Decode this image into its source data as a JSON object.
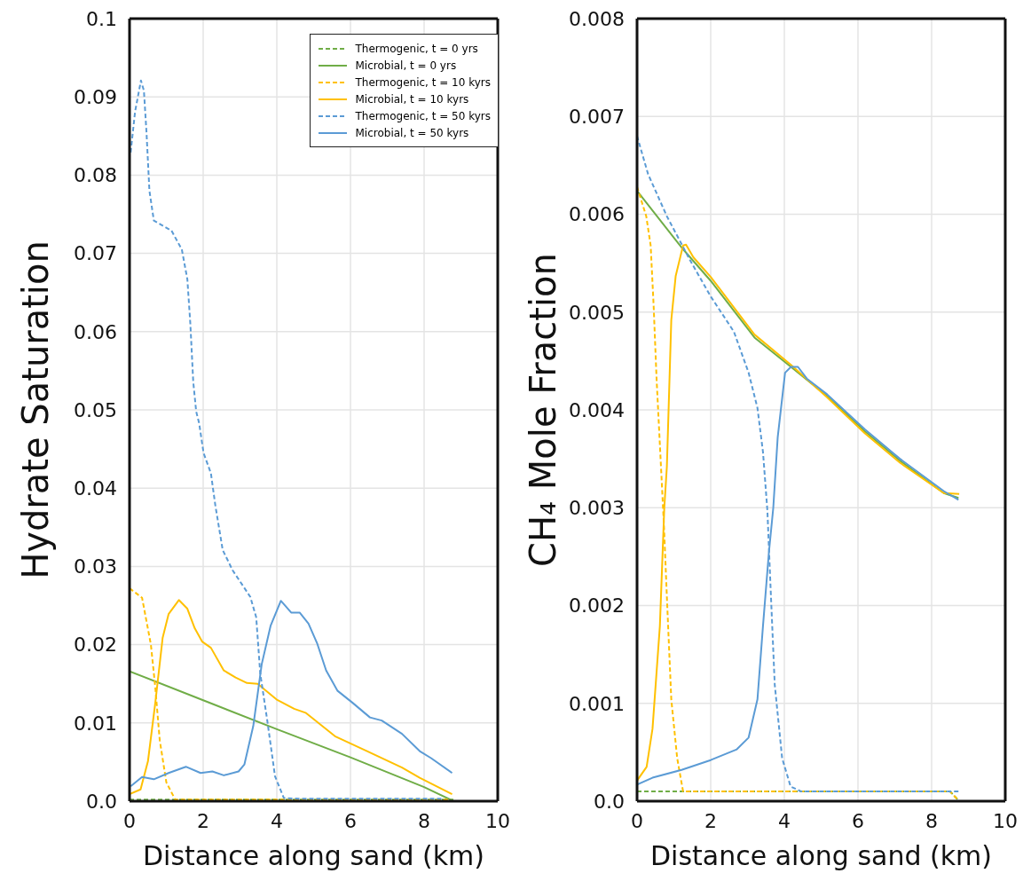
{
  "chart_data": [
    {
      "type": "line",
      "xlabel": "Distance along sand (km)",
      "ylabel": "Hydrate Saturation",
      "xlim": [
        0,
        10
      ],
      "xticks": [
        0,
        2,
        4,
        6,
        8,
        10
      ],
      "ylim": [
        0,
        0.1
      ],
      "yticks": [
        {
          "value": 0,
          "label": "0.0"
        },
        0.01,
        0.02,
        0.03,
        0.04,
        0.05,
        0.06,
        0.07,
        0.08,
        0.09,
        0.1
      ],
      "grid": true,
      "legend": "top right",
      "marker": "none",
      "series": [
        {
          "name": "Thermogenic, t = 0 yrs",
          "color": "#70ad47",
          "line_style": "dashed",
          "x": [
            0,
            2,
            4,
            6,
            8,
            8.8
          ],
          "values": [
            0.0002,
            0.0002,
            0.0002,
            0.0002,
            0.0002,
            0.0002
          ]
        },
        {
          "name": "Microbial, t = 0 yrs",
          "color": "#70ad47",
          "line_style": "solid",
          "x": [
            0,
            2,
            4,
            6,
            8,
            8.8
          ],
          "values": [
            0.0166,
            0.0129,
            0.0092,
            0.0056,
            0.0018,
            0
          ]
        },
        {
          "name": "Thermogenic, t = 10 kyrs",
          "color": "#ffc000",
          "line_style": "dashed",
          "x": [
            0,
            0.34,
            0.58,
            0.7,
            0.82,
            1.0,
            1.24,
            2,
            4,
            6,
            8,
            8.7
          ],
          "values": [
            0.0272,
            0.026,
            0.02,
            0.0145,
            0.0078,
            0.0024,
            0.0002,
            0.0002,
            0.0002,
            0.0002,
            0.0002,
            0.0002
          ]
        },
        {
          "name": "Microbial, t = 10 kyrs",
          "color": "#ffc000",
          "line_style": "solid",
          "x": [
            0,
            0.3,
            0.5,
            0.7,
            0.9,
            1.06,
            1.34,
            1.57,
            1.77,
            1.97,
            2.21,
            2.56,
            2.88,
            3.19,
            3.48,
            3.99,
            4.47,
            4.78,
            5.58,
            6.45,
            7.4,
            7.88,
            8.76
          ],
          "values": [
            0.0009,
            0.0015,
            0.0051,
            0.0126,
            0.0209,
            0.0239,
            0.0257,
            0.0246,
            0.0221,
            0.0204,
            0.0196,
            0.0167,
            0.0158,
            0.0151,
            0.015,
            0.013,
            0.0118,
            0.0113,
            0.0083,
            0.0064,
            0.0043,
            0.003,
            0.0009
          ]
        },
        {
          "name": "Thermogenic, t = 50 kyrs",
          "color": "#5b9bd5",
          "line_style": "dashed",
          "x": [
            0.03,
            0.15,
            0.31,
            0.39,
            0.46,
            0.54,
            0.66,
            1.14,
            1.42,
            1.57,
            1.65,
            1.73,
            1.81,
            1.89,
            2.01,
            2.21,
            2.33,
            2.53,
            2.8,
            3.28,
            3.44,
            3.55,
            3.75,
            3.95,
            4.19,
            4.63,
            6,
            8,
            8.5
          ],
          "values": [
            0.0829,
            0.0881,
            0.0921,
            0.0908,
            0.0855,
            0.078,
            0.0742,
            0.0729,
            0.0705,
            0.0667,
            0.0611,
            0.0536,
            0.0498,
            0.0483,
            0.0445,
            0.0419,
            0.0378,
            0.0321,
            0.0295,
            0.0261,
            0.0235,
            0.0163,
            0.01,
            0.0032,
            0.0004,
            0.0003,
            0.0003,
            0.0003,
            0.0003
          ]
        },
        {
          "name": "Microbial, t = 50 kyrs",
          "color": "#5b9bd5",
          "line_style": "solid",
          "x": [
            0.03,
            0.34,
            0.66,
            1.06,
            1.53,
            1.93,
            2.25,
            2.56,
            2.96,
            3.12,
            3.36,
            3.59,
            3.83,
            4.11,
            4.39,
            4.62,
            4.86,
            5.1,
            5.34,
            5.65,
            6.05,
            6.53,
            6.85,
            7.4,
            7.88,
            8.19,
            8.76
          ],
          "values": [
            0.0019,
            0.0031,
            0.0028,
            0.0036,
            0.0044,
            0.0036,
            0.0038,
            0.0033,
            0.0038,
            0.0047,
            0.0096,
            0.0175,
            0.0224,
            0.0256,
            0.0241,
            0.0241,
            0.0227,
            0.0201,
            0.0167,
            0.0141,
            0.0126,
            0.0107,
            0.0103,
            0.0086,
            0.0064,
            0.0055,
            0.0036
          ]
        }
      ]
    },
    {
      "type": "line",
      "xlabel": "Distance along sand (km)",
      "ylabel": "CH₄ Mole Fraction",
      "xlim": [
        0,
        10
      ],
      "xticks": [
        0,
        2,
        4,
        6,
        8,
        10
      ],
      "ylim": [
        0,
        0.008
      ],
      "yticks": [
        {
          "value": 0,
          "label": "0.0"
        },
        0.001,
        0.002,
        0.003,
        0.004,
        0.005,
        0.006,
        0.007,
        0.008
      ],
      "grid": true,
      "marker": "none",
      "series": [
        {
          "color": "#70ad47",
          "line_style": "dashed",
          "x": [
            0,
            2,
            4,
            6,
            8,
            8.5,
            8.75
          ],
          "values": [
            0.0001,
            0.0001,
            0.0001,
            0.0001,
            0.0001,
            0.0001,
            0
          ]
        },
        {
          "color": "#70ad47",
          "line_style": "solid",
          "x": [
            0.02,
            1.21,
            2.0,
            3.19,
            4.18,
            5.16,
            6.19,
            7.14,
            8.33,
            8.73
          ],
          "values": [
            0.00623,
            0.00566,
            0.00532,
            0.00474,
            0.00444,
            0.00414,
            0.00378,
            0.00348,
            0.00315,
            0.0031
          ]
        },
        {
          "color": "#ffc000",
          "line_style": "dashed",
          "x": [
            0,
            0.25,
            0.37,
            0.45,
            0.53,
            0.61,
            0.73,
            0.81,
            0.93,
            1.09,
            1.25,
            2,
            4,
            6,
            8,
            8.5,
            8.75
          ],
          "values": [
            0.00628,
            0.00598,
            0.00568,
            0.00507,
            0.00432,
            0.00372,
            0.00282,
            0.00209,
            0.00104,
            0.00044,
            0.0001,
            0.0001,
            0.0001,
            0.0001,
            0.0001,
            0.0001,
            0
          ]
        },
        {
          "color": "#ffc000",
          "line_style": "solid",
          "x": [
            0,
            0.26,
            0.42,
            0.62,
            0.74,
            0.81,
            0.93,
            1.05,
            1.25,
            1.33,
            1.53,
            2.0,
            3.19,
            4.18,
            5.16,
            6.19,
            7.14,
            8.33,
            8.75
          ],
          "values": [
            0.00021,
            0.00035,
            0.00074,
            0.00179,
            0.003,
            0.00342,
            0.00492,
            0.00537,
            0.00568,
            0.00569,
            0.00556,
            0.00536,
            0.00477,
            0.00446,
            0.00413,
            0.00376,
            0.00346,
            0.00315,
            0.00314
          ]
        },
        {
          "color": "#5b9bd5",
          "line_style": "dashed",
          "x": [
            0,
            0.3,
            0.81,
            1.44,
            2.0,
            2.63,
            3.03,
            3.27,
            3.42,
            3.54,
            3.62,
            3.74,
            3.94,
            4.17,
            4.45,
            6,
            8,
            8.5,
            8.75
          ],
          "values": [
            0.0068,
            0.00641,
            0.00598,
            0.00553,
            0.00516,
            0.0048,
            0.00438,
            0.00402,
            0.00357,
            0.00297,
            0.00224,
            0.00119,
            0.00044,
            0.00015,
            0.0001,
            0.0001,
            0.0001,
            0.0001,
            0.0001
          ]
        },
        {
          "color": "#5b9bd5",
          "line_style": "solid",
          "x": [
            0,
            0.42,
            1.21,
            2.0,
            2.71,
            3.03,
            3.27,
            3.42,
            3.58,
            3.7,
            3.82,
            4.02,
            4.18,
            4.37,
            4.61,
            5.16,
            6.19,
            7.14,
            8.33,
            8.73
          ],
          "values": [
            0.00017,
            0.00024,
            0.00032,
            0.00042,
            0.00053,
            0.00065,
            0.00104,
            0.00179,
            0.00254,
            0.003,
            0.00372,
            0.00438,
            0.00444,
            0.00444,
            0.00432,
            0.00416,
            0.0038,
            0.0035,
            0.00317,
            0.00308
          ]
        }
      ]
    }
  ]
}
